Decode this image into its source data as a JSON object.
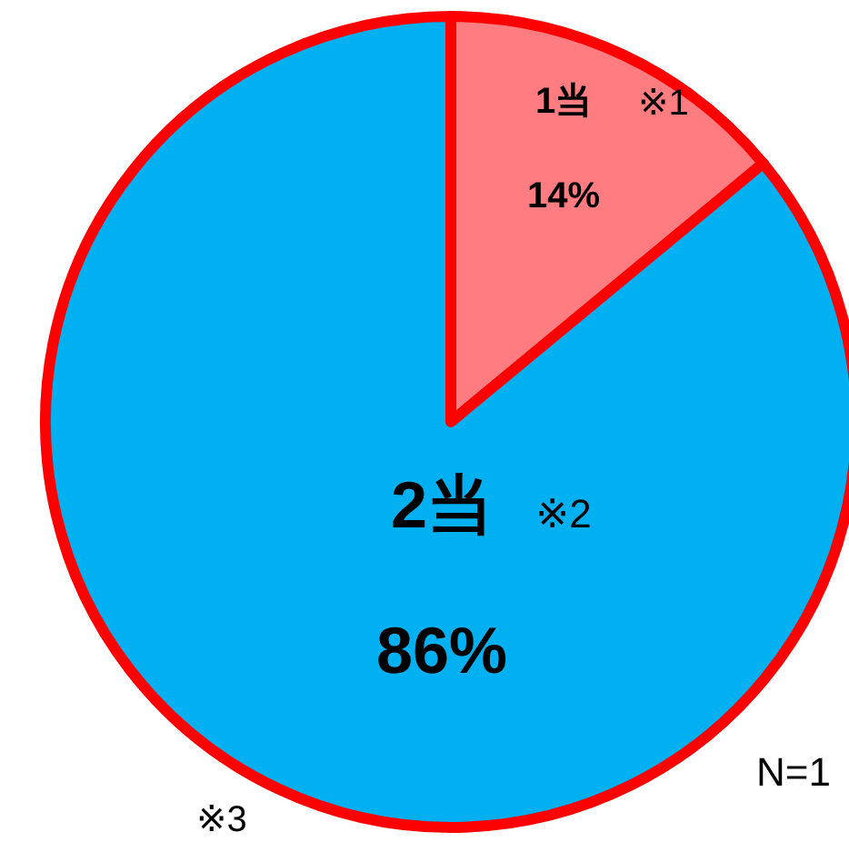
{
  "chart_data": {
    "type": "pie",
    "categories": [
      "1当",
      "2当"
    ],
    "values": [
      14,
      86
    ],
    "value_labels": [
      "14%",
      "86%"
    ],
    "colors": [
      "#ff7c80",
      "#00b0f0"
    ],
    "annotations": [
      "※1",
      "※2",
      "※3",
      "N=1"
    ]
  }
}
